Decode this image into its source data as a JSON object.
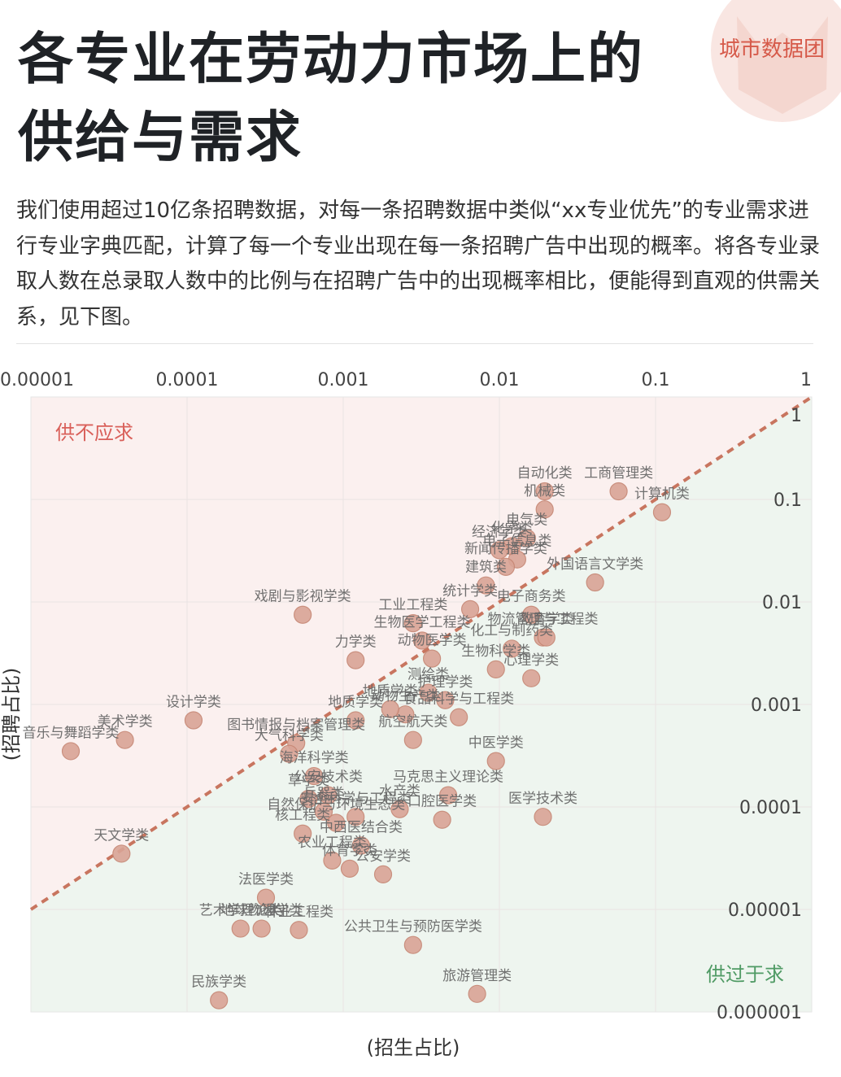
{
  "title_line1": "各专业在劳动力市场上的",
  "title_line2": "供给与需求",
  "brand": "城市数据团",
  "description": "我们使用超过10亿条招聘数据，对每一条招聘数据中类似“xx专业优先”的专业需求进行专业字典匹配，计算了每一个专业出现在每一条招聘广告中出现的概率。将各专业录取人数在总录取人数中的比例与在招聘广告中的出现概率相比，便能得到直观的供需关系，见下图。",
  "colors": {
    "point_fill": "#d9a496",
    "point_stroke": "#c58572",
    "diagonal": "#c8755f",
    "under_supply_bg": "#fbf0ef",
    "over_supply_bg": "#eef5ef",
    "under_supply_text": "#d9605a",
    "over_supply_text": "#4f9a64"
  },
  "chart_data": {
    "type": "scatter",
    "xlabel": "(招生占比)",
    "ylabel": "(招聘占比)",
    "x_scale": "log",
    "y_scale": "log",
    "xlim": [
      1e-05,
      1
    ],
    "ylim": [
      1e-06,
      1
    ],
    "x_ticks": [
      "0.00001",
      "0.0001",
      "0.001",
      "0.01",
      "0.1",
      "1"
    ],
    "y_ticks": [
      "1",
      "0.1",
      "0.01",
      "0.001",
      "0.0001",
      "0.00001",
      "0.000001"
    ],
    "region_labels": {
      "upper_left": "供不应求",
      "lower_right": "供过于求"
    },
    "points": [
      {
        "label": "计算机类",
        "x": 0.11,
        "y": 0.075
      },
      {
        "label": "工商管理类",
        "x": 0.058,
        "y": 0.12
      },
      {
        "label": "自动化类",
        "x": 0.0195,
        "y": 0.12
      },
      {
        "label": "机械类",
        "x": 0.0195,
        "y": 0.08
      },
      {
        "label": "电气类",
        "x": 0.015,
        "y": 0.042
      },
      {
        "label": "化学类",
        "x": 0.012,
        "y": 0.035
      },
      {
        "label": "经济学类",
        "x": 0.01,
        "y": 0.032
      },
      {
        "label": "电子信息类",
        "x": 0.013,
        "y": 0.026
      },
      {
        "label": "新闻传播学类",
        "x": 0.011,
        "y": 0.022
      },
      {
        "label": "外国语言文学类",
        "x": 0.041,
        "y": 0.0155
      },
      {
        "label": "建筑类",
        "x": 0.0082,
        "y": 0.0145
      },
      {
        "label": "统计学类",
        "x": 0.0065,
        "y": 0.0085
      },
      {
        "label": "电子商务类",
        "x": 0.016,
        "y": 0.0075
      },
      {
        "label": "戏剧与影视学类",
        "x": 0.00055,
        "y": 0.0075
      },
      {
        "label": "工业工程类",
        "x": 0.0028,
        "y": 0.0062
      },
      {
        "label": "生物医学工程类",
        "x": 0.0032,
        "y": 0.0042
      },
      {
        "label": "物流管理与工程类",
        "x": 0.019,
        "y": 0.0045
      },
      {
        "label": "教育学类",
        "x": 0.02,
        "y": 0.0045
      },
      {
        "label": "化工与制药类",
        "x": 0.012,
        "y": 0.0035
      },
      {
        "label": "生物科学类",
        "x": 0.0095,
        "y": 0.0022
      },
      {
        "label": "动物医学类",
        "x": 0.0037,
        "y": 0.0028
      },
      {
        "label": "力学类",
        "x": 0.0012,
        "y": 0.0027
      },
      {
        "label": "心理学类",
        "x": 0.016,
        "y": 0.0018
      },
      {
        "label": "测绘类",
        "x": 0.0035,
        "y": 0.0013
      },
      {
        "label": "护理学类",
        "x": 0.0045,
        "y": 0.0011
      },
      {
        "label": "动物生产类",
        "x": 0.0025,
        "y": 0.0008
      },
      {
        "label": "地质学类",
        "x": 0.002,
        "y": 0.0009
      },
      {
        "label": "食品科学与工程类",
        "x": 0.0055,
        "y": 0.00075
      },
      {
        "label": "设计学类",
        "x": 0.00011,
        "y": 0.0007
      },
      {
        "label": "美术学类",
        "x": 4e-05,
        "y": 0.00045
      },
      {
        "label": "音乐与舞蹈学类",
        "x": 1.8e-05,
        "y": 0.00035
      },
      {
        "label": "地质学类",
        "x": 0.0012,
        "y": 0.0007
      },
      {
        "label": "图书情报与档案管理类",
        "x": 0.0005,
        "y": 0.00042
      },
      {
        "label": "大气科学类",
        "x": 0.00045,
        "y": 0.00033
      },
      {
        "label": "航空航天类",
        "x": 0.0028,
        "y": 0.00045
      },
      {
        "label": "海洋科学类",
        "x": 0.00065,
        "y": 0.0002
      },
      {
        "label": "公安技术类",
        "x": 0.0008,
        "y": 0.00013
      },
      {
        "label": "中医学类",
        "x": 0.0095,
        "y": 0.00028
      },
      {
        "label": "草学类",
        "x": 0.0006,
        "y": 0.00012
      },
      {
        "label": "马克思主义理论类",
        "x": 0.0047,
        "y": 0.00013
      },
      {
        "label": "医学技术类",
        "x": 0.019,
        "y": 8e-05
      },
      {
        "label": "兵器类",
        "x": 0.00075,
        "y": 9e-05
      },
      {
        "label": "安全科学与工程类",
        "x": 0.0012,
        "y": 8e-05
      },
      {
        "label": "水产类",
        "x": 0.0023,
        "y": 9.5e-05
      },
      {
        "label": "口腔医学类",
        "x": 0.0043,
        "y": 7.5e-05
      },
      {
        "label": "自然保护与环境生态类",
        "x": 0.0009,
        "y": 7e-05
      },
      {
        "label": "核工程类",
        "x": 0.00055,
        "y": 5.5e-05
      },
      {
        "label": "中西医结合类",
        "x": 0.0013,
        "y": 4.2e-05
      },
      {
        "label": "农业工程类",
        "x": 0.00085,
        "y": 3e-05
      },
      {
        "label": "体育学类",
        "x": 0.0011,
        "y": 2.5e-05
      },
      {
        "label": "天文学类",
        "x": 3.8e-05,
        "y": 3.5e-05
      },
      {
        "label": "公安学类",
        "x": 0.0018,
        "y": 2.2e-05
      },
      {
        "label": "法医学类",
        "x": 0.00032,
        "y": 1.3e-05
      },
      {
        "label": "艺术学理论类",
        "x": 0.00022,
        "y": 6.5e-06
      },
      {
        "label": "地球物理学类",
        "x": 0.0003,
        "y": 6.5e-06
      },
      {
        "label": "林业工程类",
        "x": 0.00052,
        "y": 6.3e-06
      },
      {
        "label": "公共卫生与预防医学类",
        "x": 0.0028,
        "y": 4.5e-06
      },
      {
        "label": "民族学类",
        "x": 0.00016,
        "y": 1.3e-06
      },
      {
        "label": "旅游管理类",
        "x": 0.0072,
        "y": 1.5e-06
      }
    ]
  }
}
